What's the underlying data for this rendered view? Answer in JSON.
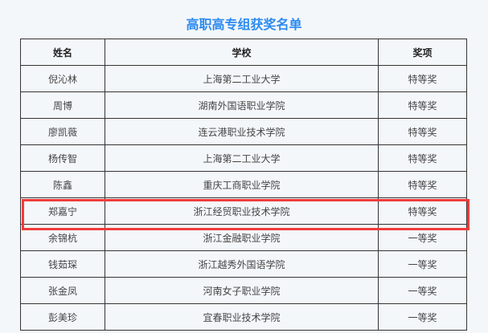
{
  "title": "高职高专组获奖名单",
  "headers": [
    "姓名",
    "学校",
    "奖项"
  ],
  "rows": [
    {
      "name": "倪沁林",
      "school": "上海第二工业大学",
      "award": "特等奖"
    },
    {
      "name": "周博",
      "school": "湖南外国语职业学院",
      "award": "特等奖"
    },
    {
      "name": "廖凯薇",
      "school": "连云港职业技术学院",
      "award": "特等奖"
    },
    {
      "name": "杨传智",
      "school": "上海第二工业大学",
      "award": "特等奖"
    },
    {
      "name": "陈鑫",
      "school": "重庆工商职业学院",
      "award": "特等奖"
    },
    {
      "name": "郑嘉宁",
      "school": "浙江经贸职业技术学院",
      "award": "特等奖"
    },
    {
      "name": "余锦杭",
      "school": "浙江金融职业学院",
      "award": "一等奖"
    },
    {
      "name": "钱茹琛",
      "school": "浙江越秀外国语学院",
      "award": "一等奖"
    },
    {
      "name": "张金凤",
      "school": "河南女子职业学院",
      "award": "一等奖"
    },
    {
      "name": "彭美珍",
      "school": "宜春职业技术学院",
      "award": "一等奖"
    }
  ],
  "highlight_color": "#f23a3a",
  "title_color": "#2b8af0"
}
